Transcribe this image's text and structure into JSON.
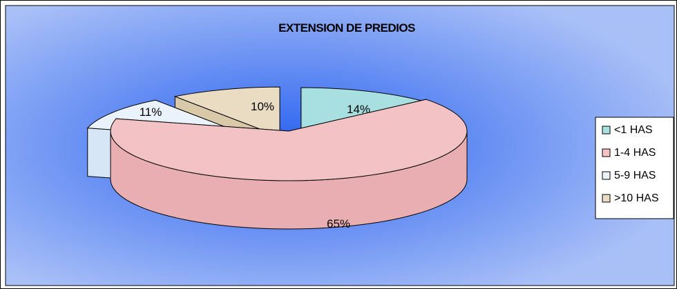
{
  "colors": {
    "background_center": "#2b63f0",
    "background_edge": "#a9c0f7",
    "frame_border": "#000000"
  },
  "chart_data": {
    "type": "pie",
    "title": "EXTENSION DE PREDIOS",
    "categories": [
      "<1 HAS",
      "1-4 HAS",
      "5-9 HAS",
      ">10 HAS"
    ],
    "values": [
      14,
      65,
      11,
      10
    ],
    "data_labels": [
      "14%",
      "65%",
      "11%",
      "10%"
    ],
    "colors": [
      "#a8e0e2",
      "#f2c2c4",
      "#eaf2fb",
      "#e9dcc2"
    ],
    "side_colors": [
      "#8fcfd3",
      "#e8aeb1",
      "#d7e6f6",
      "#d9c9a8"
    ],
    "legend_position": "right",
    "three_d": true,
    "exploded": true
  }
}
